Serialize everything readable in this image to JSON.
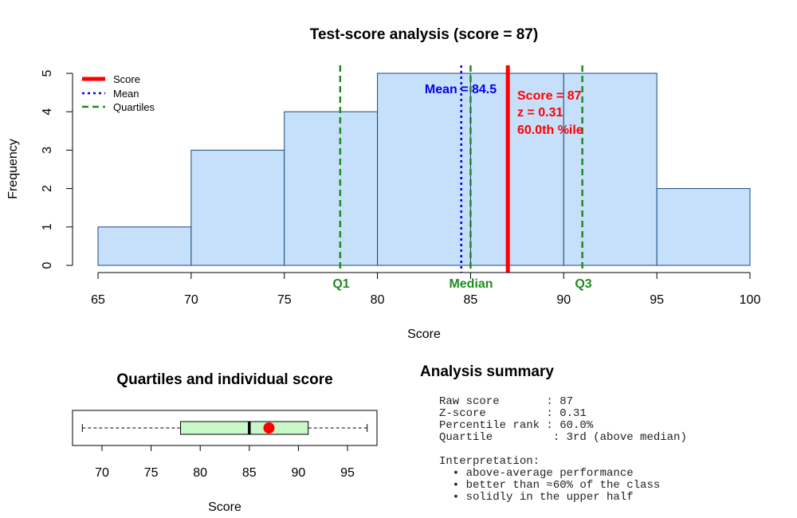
{
  "colors": {
    "bar_fill": "#c6e0fb",
    "bar_stroke": "#1a4a7a",
    "score": "#ff0000",
    "mean": "#0000ee",
    "quartiles": "#228b22",
    "box_fill": "#c9f7c9"
  },
  "chart_data": [
    {
      "type": "bar",
      "title": "Test-score analysis  (score = 87)",
      "xlabel": "Score",
      "ylabel": "Frequency",
      "bins": [
        [
          65,
          70
        ],
        [
          70,
          75
        ],
        [
          75,
          80
        ],
        [
          80,
          85
        ],
        [
          85,
          90
        ],
        [
          90,
          95
        ],
        [
          95,
          100
        ]
      ],
      "values": [
        1,
        3,
        4,
        5,
        5,
        5,
        2
      ],
      "xlim": [
        65,
        100
      ],
      "ylim": [
        0,
        5
      ],
      "xticks": [
        65,
        70,
        75,
        80,
        85,
        90,
        95,
        100
      ],
      "yticks": [
        0,
        1,
        2,
        3,
        4,
        5
      ],
      "legend": {
        "position": "top-left",
        "entries": [
          {
            "label": "Score",
            "style": "solid",
            "color": "#ff0000"
          },
          {
            "label": "Mean",
            "style": "dotted",
            "color": "#0000ee"
          },
          {
            "label": "Quartiles",
            "style": "dashed",
            "color": "#228b22"
          }
        ]
      },
      "reference_lines": {
        "score": 87,
        "mean": 84.5,
        "q1": 78,
        "median": 85,
        "q3": 91
      },
      "annotations": {
        "mean_label": "Mean = 84.5",
        "score_lines": [
          "Score = 87",
          "z = 0.31",
          "60.0th %ile"
        ],
        "q1_label": "Q1",
        "median_label": "Median",
        "q3_label": "Q3"
      }
    },
    {
      "type": "box",
      "title": "Quartiles and individual score",
      "xlabel": "Score",
      "whisker_low": 68,
      "q1": 78,
      "median": 85,
      "q3": 91,
      "whisker_high": 97,
      "score_point": 87,
      "xlim": [
        67,
        98
      ],
      "xticks": [
        70,
        75,
        80,
        85,
        90,
        95
      ]
    }
  ],
  "summary": {
    "title": "Analysis summary",
    "lines": [
      "Raw score       : 87",
      "Z-score         : 0.31",
      "Percentile rank : 60.0%",
      "Quartile         : 3rd (above median)",
      "",
      "Interpretation:",
      "  • above-average performance",
      "  • better than ≈60% of the class",
      "  • solidly in the upper half"
    ]
  }
}
